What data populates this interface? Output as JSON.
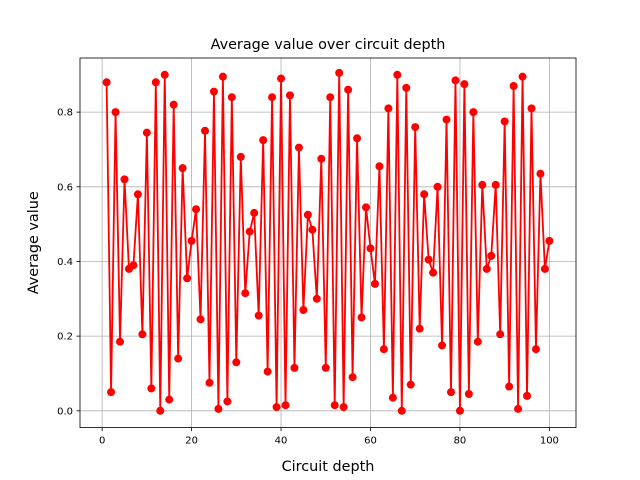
{
  "chart_data": {
    "type": "line",
    "title": "Average value over circuit depth",
    "xlabel": "Circuit depth",
    "ylabel": "Average value",
    "xlim": [
      -4.95,
      105.95
    ],
    "ylim": [
      -0.045,
      0.945
    ],
    "xticks": [
      0,
      20,
      40,
      60,
      80,
      100
    ],
    "yticks": [
      0.0,
      0.2,
      0.4,
      0.6,
      0.8
    ],
    "ytick_labels": [
      "0.0",
      "0.2",
      "0.4",
      "0.6",
      "0.8"
    ],
    "grid": true,
    "series": [
      {
        "color": "#ff0000",
        "marker": "circle",
        "x": [
          1,
          2,
          3,
          4,
          5,
          6,
          7,
          8,
          9,
          10,
          11,
          12,
          13,
          14,
          15,
          16,
          17,
          18,
          19,
          20,
          21,
          22,
          23,
          24,
          25,
          26,
          27,
          28,
          29,
          30,
          31,
          32,
          33,
          34,
          35,
          36,
          37,
          38,
          39,
          40,
          41,
          42,
          43,
          44,
          45,
          46,
          47,
          48,
          49,
          50,
          51,
          52,
          53,
          54,
          55,
          56,
          57,
          58,
          59,
          60,
          61,
          62,
          63,
          64,
          65,
          66,
          67,
          68,
          69,
          70,
          71,
          72,
          73,
          74,
          75,
          76,
          77,
          78,
          79,
          80,
          81,
          82,
          83,
          84,
          85,
          86,
          87,
          88,
          89,
          90,
          91,
          92,
          93,
          94,
          95,
          96,
          97,
          98,
          99,
          100
        ],
        "y": [
          0.88,
          0.05,
          0.8,
          0.185,
          0.62,
          0.38,
          0.39,
          0.58,
          0.205,
          0.745,
          0.06,
          0.88,
          0.0,
          0.9,
          0.03,
          0.82,
          0.14,
          0.65,
          0.355,
          0.455,
          0.54,
          0.245,
          0.75,
          0.075,
          0.855,
          0.005,
          0.895,
          0.025,
          0.84,
          0.13,
          0.68,
          0.315,
          0.48,
          0.53,
          0.255,
          0.725,
          0.105,
          0.84,
          0.01,
          0.89,
          0.015,
          0.845,
          0.115,
          0.705,
          0.27,
          0.525,
          0.485,
          0.3,
          0.675,
          0.115,
          0.84,
          0.015,
          0.905,
          0.01,
          0.86,
          0.09,
          0.73,
          0.25,
          0.545,
          0.435,
          0.34,
          0.655,
          0.165,
          0.81,
          0.035,
          0.9,
          0.0,
          0.865,
          0.07,
          0.76,
          0.22,
          0.58,
          0.405,
          0.37,
          0.6,
          0.175,
          0.78,
          0.05,
          0.885,
          0.0,
          0.875,
          0.045,
          0.8,
          0.185,
          0.605,
          0.38,
          0.415,
          0.605,
          0.205,
          0.775,
          0.065,
          0.87,
          0.005,
          0.895,
          0.04,
          0.81,
          0.165,
          0.635,
          0.38,
          0.455
        ]
      }
    ]
  }
}
